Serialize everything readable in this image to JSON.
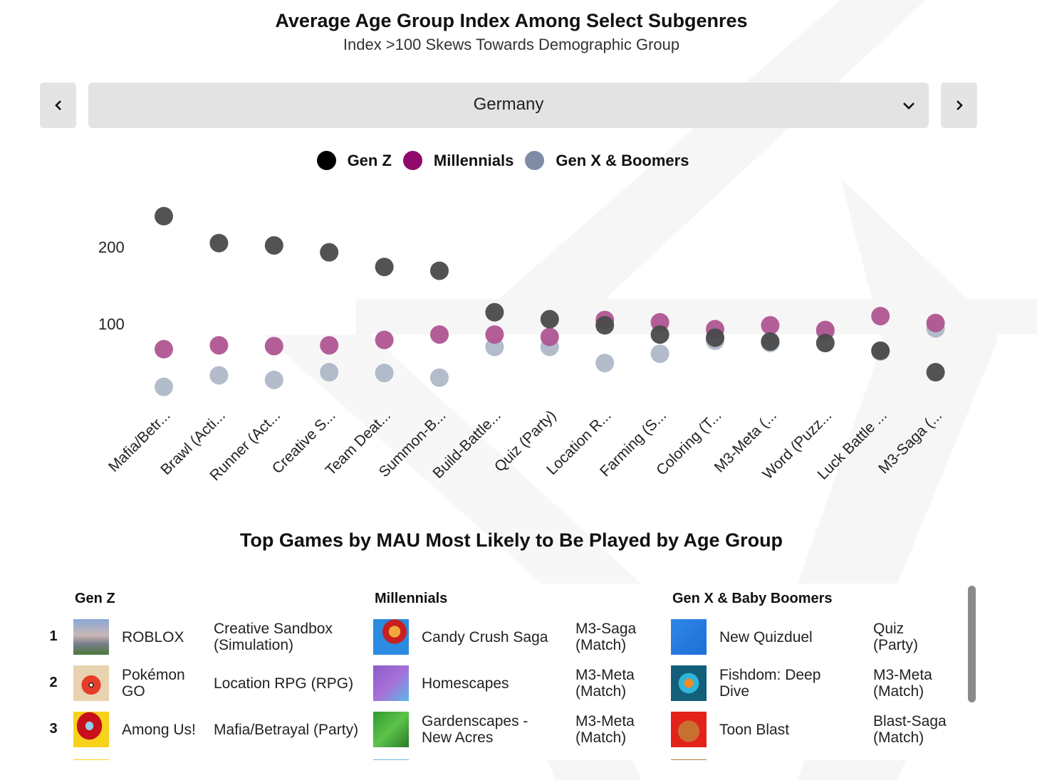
{
  "header": {
    "title": "Average Age Group Index Among Select Subgenres",
    "subtitle": "Index  >100 Skews Towards Demographic Group"
  },
  "controls": {
    "prev_icon": "chevron-left-icon",
    "next_icon": "chevron-right-icon",
    "dropdown_icon": "chevron-down-icon",
    "country_selected": "Germany"
  },
  "colors": {
    "genz": "#4a4a4a",
    "millennials": "#b05592",
    "genx": "#a5b0c1",
    "legend_genz": "#000000",
    "legend_millennials": "#8f0a6a",
    "legend_genx": "#7f8ca5"
  },
  "chart_data": {
    "type": "scatter",
    "title": "Average Age Group Index Among Select Subgenres",
    "subtitle": "Index  >100 Skews Towards Demographic Group",
    "xlabel": "",
    "ylabel": "",
    "y_ticks": [
      100,
      200
    ],
    "ylim": [
      10,
      250
    ],
    "grid": false,
    "legend_position": "top-center",
    "categories": [
      "Mafia/Betr...",
      "Brawl (Acti...",
      "Runner (Act...",
      "Creative S...",
      "Team Deat...",
      "Summon-B...",
      "Build-Battle...",
      "Quiz (Party)",
      "Location R...",
      "Farming (S...",
      "Coloring (T...",
      "M3-Meta (...",
      "Word (Puzz...",
      "Luck Battle ...",
      "M3-Saga (..."
    ],
    "series": [
      {
        "name": "Gen Z",
        "key": "genz",
        "values": [
          240,
          205,
          202,
          193,
          174,
          169,
          115,
          106,
          98,
          86,
          82,
          77,
          75,
          65,
          37
        ]
      },
      {
        "name": "Millennials",
        "key": "millennials",
        "values": [
          67,
          72,
          71,
          72,
          79,
          86,
          86,
          83,
          105,
          102,
          93,
          98,
          92,
          110,
          101
        ]
      },
      {
        "name": "Gen X & Boomers",
        "key": "genx",
        "values": [
          18,
          33,
          27,
          37,
          36,
          30,
          70,
          70,
          49,
          61,
          78,
          75,
          90,
          64,
          94
        ]
      }
    ]
  },
  "legend": [
    {
      "label": "Gen Z",
      "key": "legend_genz"
    },
    {
      "label": "Millennials",
      "key": "legend_millennials"
    },
    {
      "label": "Gen X & Boomers",
      "key": "legend_genx"
    }
  ],
  "top_games": {
    "title": "Top Games by MAU Most Likely to Be Played by Age Group",
    "columns": [
      {
        "header": "Gen Z",
        "rows": [
          {
            "rank": "1",
            "name": "ROBLOX",
            "subgenre": "Creative Sandbox (Simulation)",
            "icon": "roblox-app-icon"
          },
          {
            "rank": "2",
            "name": "Pokémon GO",
            "subgenre": "Location RPG (RPG)",
            "icon": "pokemon-go-app-icon"
          },
          {
            "rank": "3",
            "name": "Among Us!",
            "subgenre": "Mafia/Betrayal (Party)",
            "icon": "among-us-app-icon"
          }
        ]
      },
      {
        "header": "Millennials",
        "rows": [
          {
            "name": "Candy Crush Saga",
            "subgenre": "M3-Saga (Match)",
            "icon": "candy-crush-app-icon"
          },
          {
            "name": "Homescapes",
            "subgenre": "M3-Meta (Match)",
            "icon": "homescapes-app-icon"
          },
          {
            "name": "Gardenscapes - New Acres",
            "subgenre": "M3-Meta (Match)",
            "icon": "gardenscapes-app-icon"
          }
        ]
      },
      {
        "header": "Gen X & Baby Boomers",
        "rows": [
          {
            "name": "New Quizduel",
            "subgenre": "Quiz (Party)",
            "icon": "quizduel-app-icon"
          },
          {
            "name": "Fishdom: Deep Dive",
            "subgenre": "M3-Meta (Match)",
            "icon": "fishdom-app-icon"
          },
          {
            "name": "Toon Blast",
            "subgenre": "Blast-Saga (Match)",
            "icon": "toon-blast-app-icon"
          }
        ]
      }
    ]
  }
}
